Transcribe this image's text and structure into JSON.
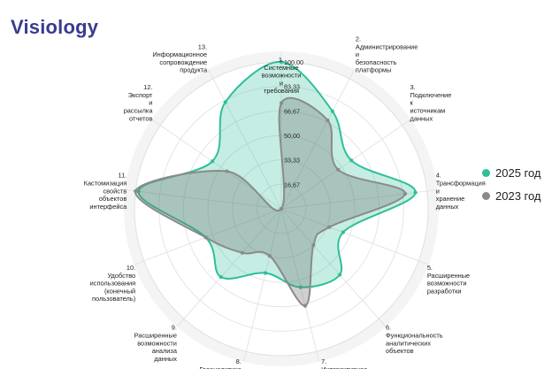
{
  "page_title": "Visiology",
  "colors": {
    "series_2025": "#2ebf9a",
    "series_2023": "#8a8a8a",
    "grid": "#e2e2e2",
    "title": "#3b3b8f"
  },
  "chart_data": {
    "type": "radar",
    "title": "",
    "axis_ticks": [
      "16,67",
      "33,33",
      "50,00",
      "66,67",
      "83,33",
      "100,00"
    ],
    "tick_values": [
      16.67,
      33.33,
      50.0,
      66.67,
      83.33,
      100.0
    ],
    "range": [
      0,
      100
    ],
    "grid": true,
    "legend_position": "right",
    "categories": [
      [
        "1.",
        "Системные",
        "возможности",
        "и",
        "требования"
      ],
      [
        "2.",
        "Администрирование",
        "и",
        "безопасность",
        "платформы"
      ],
      [
        "3.",
        "Подключение",
        "к",
        "источникам",
        "данных"
      ],
      [
        "4.",
        "Трансформация",
        "и",
        "хранение",
        "данных"
      ],
      [
        "5.",
        "Расширенные",
        "возможности",
        "разработки"
      ],
      [
        "6.",
        "Функциональность",
        "аналитических",
        "объектов"
      ],
      [
        "7.",
        "Интерактивное",
        "визуальное"
      ],
      [
        "8.",
        "Геоаналитика"
      ],
      [
        "9.",
        "Расширенные",
        "возможности",
        "анализа",
        "данных"
      ],
      [
        "10.",
        "Удобство",
        "использования",
        "(конечный",
        "пользователь)"
      ],
      [
        "11.",
        "Кастомизация",
        "свойств",
        "объектов",
        "интерфейса"
      ],
      [
        "12.",
        "Экспорт",
        "и",
        "рассылка",
        "отчетов"
      ],
      [
        "13.",
        "Информационное",
        "сопровождение",
        "продукта"
      ]
    ],
    "series": [
      {
        "name": "2025 год",
        "values": [
          100,
          75,
          58,
          92,
          45,
          60,
          55,
          45,
          62,
          55,
          98,
          57,
          82
        ]
      },
      {
        "name": "2023 год",
        "values": [
          72,
          68,
          47,
          85,
          35,
          33,
          68,
          33,
          40,
          55,
          100,
          45,
          0
        ]
      }
    ]
  }
}
